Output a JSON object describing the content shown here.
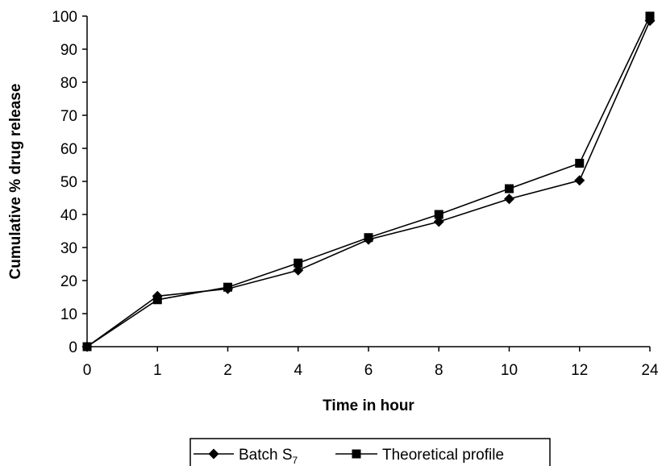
{
  "chart_data": {
    "type": "line",
    "title": "",
    "xlabel": "Time in hour",
    "ylabel": "Cumulative % drug release",
    "categories": [
      "0",
      "1",
      "2",
      "4",
      "6",
      "8",
      "10",
      "12",
      "24"
    ],
    "ylim": [
      0,
      100
    ],
    "yticks": [
      "0",
      "10",
      "20",
      "30",
      "40",
      "50",
      "60",
      "70",
      "80",
      "90",
      "100"
    ],
    "grid": false,
    "legend_position": "bottom",
    "series": [
      {
        "name": "Batch S",
        "name_subscript": "7",
        "marker": "diamond",
        "color": "#000000",
        "values": [
          0,
          15.3,
          17.5,
          23.1,
          32.4,
          37.8,
          44.7,
          50.3,
          98.6
        ]
      },
      {
        "name": "Theoretical profile",
        "marker": "square",
        "color": "#000000",
        "values": [
          0,
          14.2,
          18.0,
          25.3,
          33.0,
          40.0,
          47.8,
          55.5,
          100.0
        ]
      }
    ]
  }
}
